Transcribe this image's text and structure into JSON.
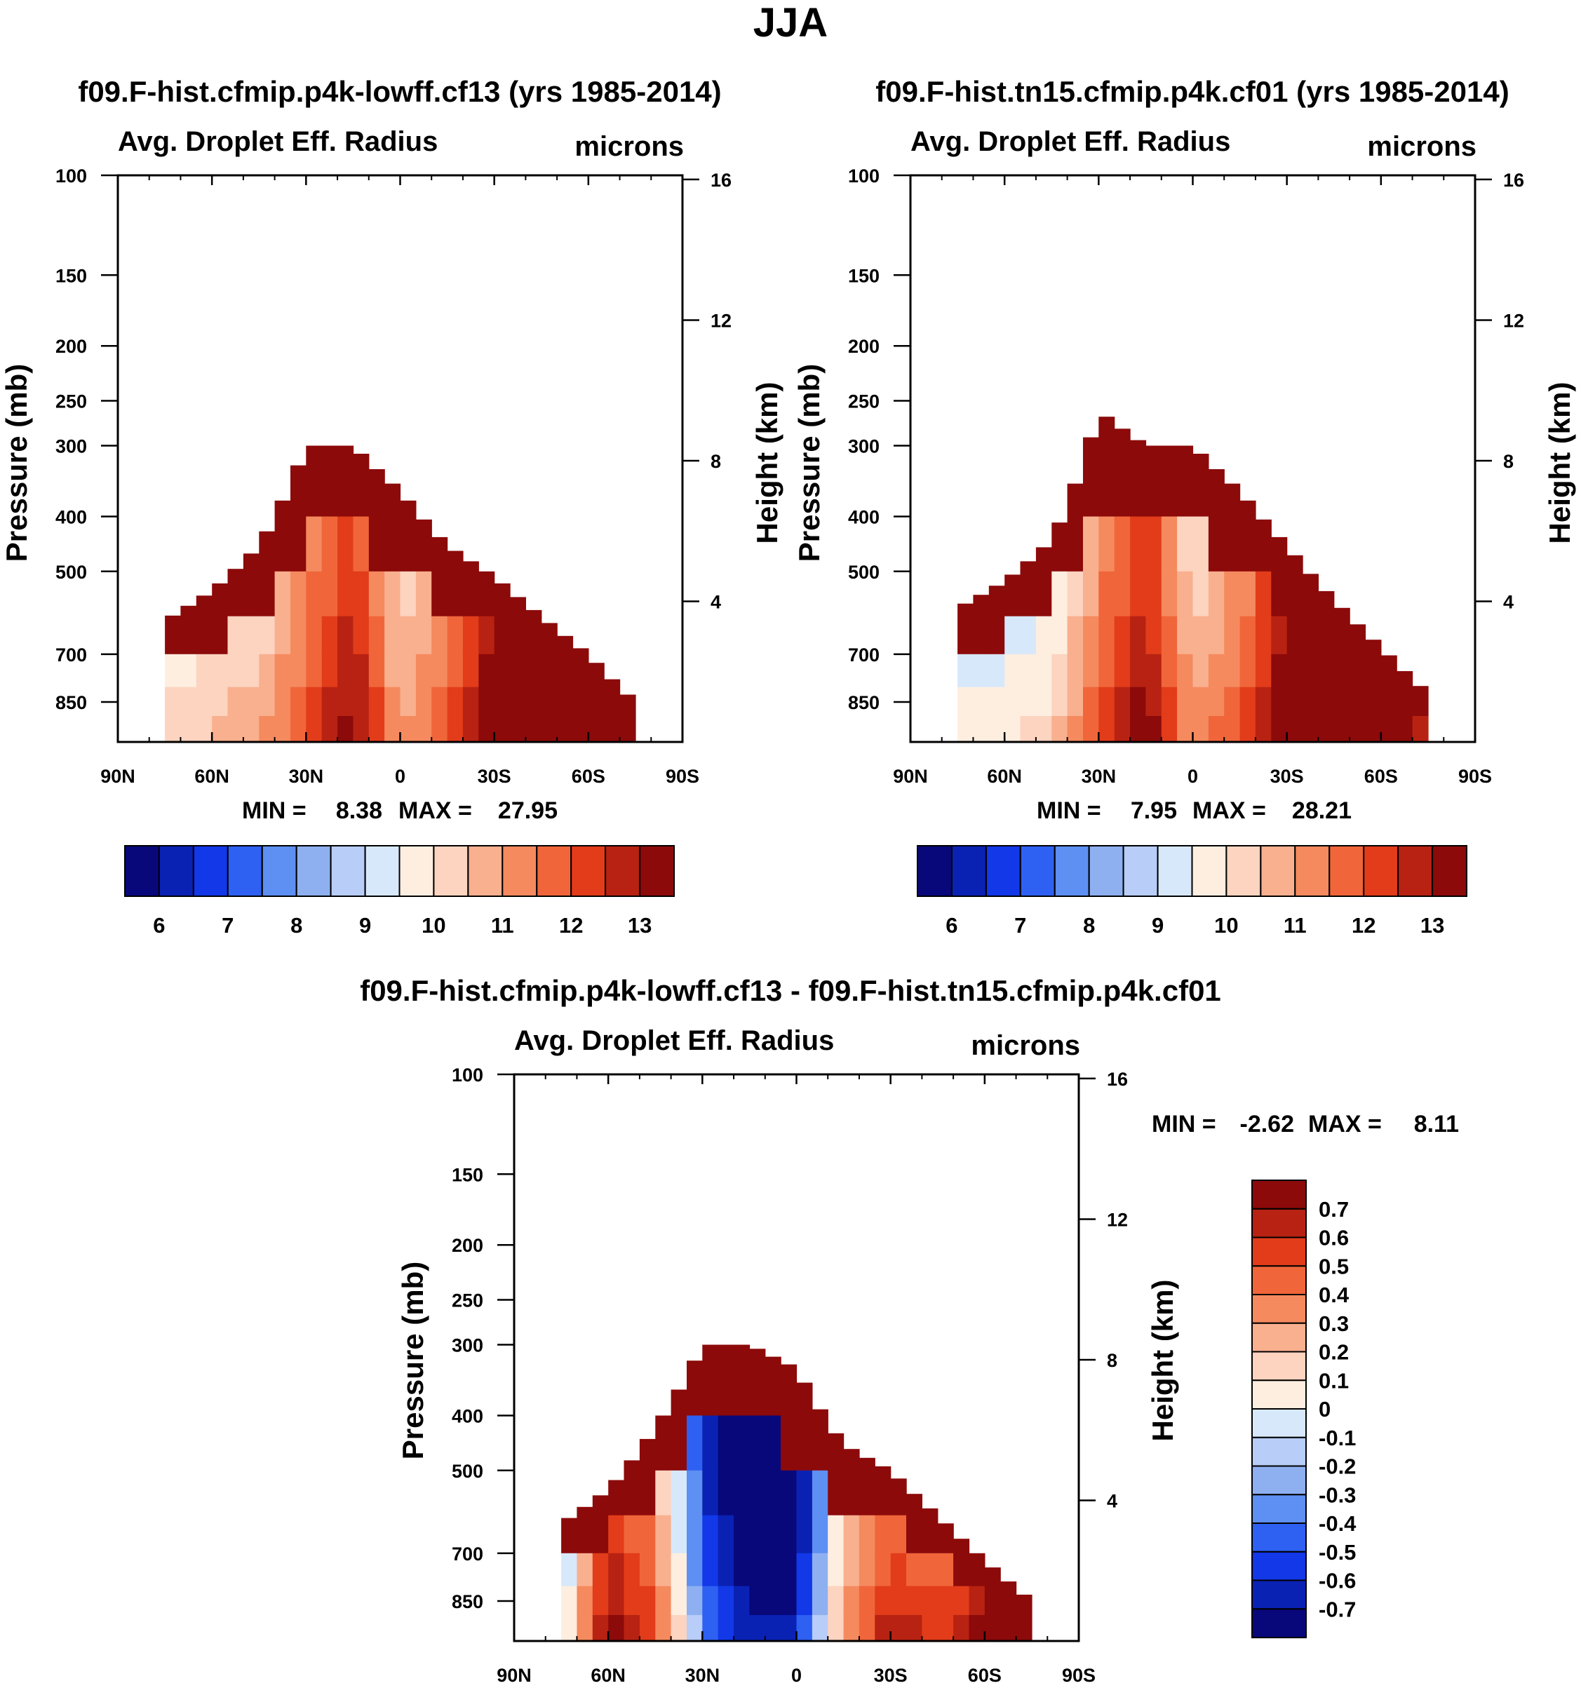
{
  "figure": {
    "season": "JJA"
  },
  "palette": {
    "abs": [
      "#08087a",
      "#0a22b4",
      "#1238e8",
      "#2e60f2",
      "#5e8ff2",
      "#8fb0f0",
      "#b8cdf7",
      "#d7e8fb",
      "#fdeee0",
      "#fcd4c0",
      "#f9b08f",
      "#f58a5f",
      "#f0663a",
      "#e23c1a",
      "#b82212",
      "#8c0a0a"
    ],
    "diff": [
      "#08087a",
      "#0a22b4",
      "#1238e8",
      "#2e60f2",
      "#5e8ff2",
      "#8fb0f0",
      "#b8cdf7",
      "#d7e8fb",
      "#fdeee0",
      "#fcd4c0",
      "#f9b08f",
      "#f58a5f",
      "#f0663a",
      "#e23c1a",
      "#b82212",
      "#8c0a0a"
    ]
  },
  "panels": [
    {
      "title": "f09.F-hist.cfmip.p4k-lowff.cf13 (yrs 1985-2014)",
      "variable": "Avg. Droplet Eff. Radius",
      "units": "microns",
      "ylabel": "Pressure (mb)",
      "ylabel_right": "Height (km)",
      "min_label": "MIN =",
      "min_value": "8.38",
      "max_label": "MAX =",
      "max_value": "27.95"
    },
    {
      "title": "f09.F-hist.tn15.cfmip.p4k.cf01 (yrs 1985-2014)",
      "variable": "Avg. Droplet Eff. Radius",
      "units": "microns",
      "ylabel": "Pressure (mb)",
      "ylabel_right": "Height (km)",
      "min_label": "MIN =",
      "min_value": "7.95",
      "max_label": "MAX =",
      "max_value": "28.21"
    },
    {
      "title": "f09.F-hist.cfmip.p4k-lowff.cf13 - f09.F-hist.tn15.cfmip.p4k.cf01",
      "variable": "Avg. Droplet Eff. Radius",
      "units": "microns",
      "ylabel": "Pressure (mb)",
      "ylabel_right": "Height (km)",
      "min_label": "MIN =",
      "min_value": "-2.62",
      "max_label": "MAX =",
      "max_value": "8.11"
    }
  ],
  "axes": {
    "lat_ticks": [
      "90N",
      "60N",
      "30N",
      "0",
      "30S",
      "60S",
      "90S"
    ],
    "pressure_ticks": [
      "100",
      "150",
      "200",
      "250",
      "300",
      "400",
      "500",
      "700",
      "850"
    ],
    "height_ticks": [
      "16",
      "12",
      "8",
      "4"
    ]
  },
  "colorbars": {
    "abs_labels": [
      "6",
      "7",
      "8",
      "9",
      "10",
      "11",
      "12",
      "13"
    ],
    "diff_labels": [
      "0.7",
      "0.6",
      "0.5",
      "0.4",
      "0.3",
      "0.2",
      "0.1",
      "0",
      "-0.1",
      "-0.2",
      "-0.3",
      "-0.4",
      "-0.5",
      "-0.6",
      "-0.7"
    ]
  },
  "chart_data": [
    {
      "type": "heatmap",
      "title": "f09.F-hist.cfmip.p4k-lowff.cf13 (yrs 1985-2014)",
      "x_ticks": [
        "90N",
        "60N",
        "30N",
        "0",
        "30S",
        "60S",
        "90S"
      ],
      "y_ticks_pressure_mb": [
        100,
        150,
        200,
        250,
        300,
        400,
        500,
        700,
        850
      ],
      "y_ticks_height_km": [
        16,
        12,
        8,
        4
      ],
      "levels": [
        6,
        6.5,
        7,
        7.5,
        8,
        8.5,
        9,
        9.5,
        10,
        10.5,
        11,
        11.5,
        12,
        12.5,
        13
      ],
      "min": 8.38,
      "max": 27.95,
      "profile": {
        "lat": [
          90,
          75,
          60,
          45,
          30,
          15,
          0,
          -15,
          -30,
          -45,
          -60,
          -75,
          -90
        ],
        "top_pressure_mb": [
          null,
          610,
          540,
          450,
          300,
          300,
          360,
          450,
          510,
          600,
          700,
          850,
          null
        ],
        "value_650mb": [
          9.4,
          9.6,
          9.9,
          10.3,
          11.5,
          12.8,
          10.4,
          11.3,
          13.2,
          13.1,
          13.0,
          12.5,
          null
        ]
      }
    },
    {
      "type": "heatmap",
      "title": "f09.F-hist.tn15.cfmip.p4k.cf01 (yrs 1985-2014)",
      "x_ticks": [
        "90N",
        "60N",
        "30N",
        "0",
        "30S",
        "60S",
        "90S"
      ],
      "y_ticks_pressure_mb": [
        100,
        150,
        200,
        250,
        300,
        400,
        500,
        700,
        850
      ],
      "y_ticks_height_km": [
        16,
        12,
        8,
        4
      ],
      "levels": [
        6,
        6.5,
        7,
        7.5,
        8,
        8.5,
        9,
        9.5,
        10,
        10.5,
        11,
        11.5,
        12,
        12.5,
        13
      ],
      "min": 7.95,
      "max": 28.21,
      "profile": {
        "lat": [
          90,
          75,
          60,
          45,
          30,
          15,
          0,
          -15,
          -30,
          -45,
          -60,
          -75,
          -90
        ],
        "top_pressure_mb": [
          null,
          580,
          520,
          440,
          260,
          300,
          300,
          360,
          450,
          560,
          680,
          820,
          null
        ],
        "value_650mb": [
          9.0,
          9.1,
          9.3,
          9.6,
          11.5,
          12.9,
          10.5,
          11.4,
          13.1,
          13.2,
          12.8,
          12.3,
          null
        ]
      }
    },
    {
      "type": "heatmap",
      "title": "f09.F-hist.cfmip.p4k-lowff.cf13 - f09.F-hist.tn15.cfmip.p4k.cf01",
      "x_ticks": [
        "90N",
        "60N",
        "30N",
        "0",
        "30S",
        "60S",
        "90S"
      ],
      "y_ticks_pressure_mb": [
        100,
        150,
        200,
        250,
        300,
        400,
        500,
        700,
        850
      ],
      "y_ticks_height_km": [
        16,
        12,
        8,
        4
      ],
      "levels": [
        -0.7,
        -0.6,
        -0.5,
        -0.4,
        -0.3,
        -0.2,
        -0.1,
        0,
        0.1,
        0.2,
        0.3,
        0.4,
        0.5,
        0.6,
        0.7
      ],
      "min": -2.62,
      "max": 8.11,
      "profile": {
        "lat": [
          90,
          75,
          60,
          45,
          30,
          15,
          0,
          -15,
          -30,
          -45,
          -60,
          -75,
          -90
        ],
        "top_pressure_mb": [
          null,
          620,
          540,
          420,
          300,
          300,
          330,
          450,
          500,
          600,
          720,
          850,
          null
        ],
        "value_650mb": [
          -0.6,
          -0.2,
          0.6,
          0.4,
          -0.5,
          -0.8,
          -0.8,
          0.2,
          0.5,
          0.4,
          0.6,
          0.5,
          null
        ]
      }
    }
  ]
}
